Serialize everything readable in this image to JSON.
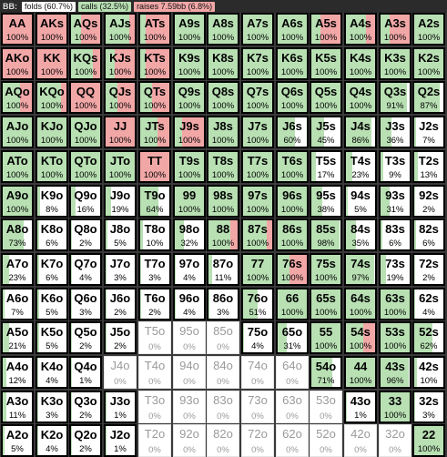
{
  "header": {
    "title": "BB:",
    "legend": [
      {
        "label": "folds (60.7%)",
        "color": "#ffffff"
      },
      {
        "label": "calls (32.5%)",
        "color": "#b8e0b3"
      },
      {
        "label": "raises 7.59bb (6.8%)",
        "color": "#f2a7a7"
      }
    ]
  },
  "colors": {
    "call": "#b8e0b3",
    "raise": "#f2a7a7",
    "fold": "#ffffff"
  },
  "rows": [
    [
      {
        "hand": "AA",
        "pct": "100%",
        "call": 0,
        "raise": 100
      },
      {
        "hand": "AKs",
        "pct": "100%",
        "call": 0,
        "raise": 100
      },
      {
        "hand": "AQs",
        "pct": "100%",
        "call": 35,
        "raise": 65
      },
      {
        "hand": "AJs",
        "pct": "100%",
        "call": 80,
        "raise": 20
      },
      {
        "hand": "ATs",
        "pct": "100%",
        "call": 20,
        "raise": 80
      },
      {
        "hand": "A9s",
        "pct": "100%",
        "call": 100,
        "raise": 0
      },
      {
        "hand": "A8s",
        "pct": "100%",
        "call": 100,
        "raise": 0
      },
      {
        "hand": "A7s",
        "pct": "100%",
        "call": 100,
        "raise": 0
      },
      {
        "hand": "A6s",
        "pct": "100%",
        "call": 100,
        "raise": 0
      },
      {
        "hand": "A5s",
        "pct": "100%",
        "call": 30,
        "raise": 70
      },
      {
        "hand": "A4s",
        "pct": "100%",
        "call": 70,
        "raise": 30
      },
      {
        "hand": "A3s",
        "pct": "100%",
        "call": 30,
        "raise": 70
      },
      {
        "hand": "A2s",
        "pct": "100%",
        "call": 100,
        "raise": 0
      }
    ],
    [
      {
        "hand": "AKo",
        "pct": "100%",
        "call": 0,
        "raise": 100
      },
      {
        "hand": "KK",
        "pct": "100%",
        "call": 0,
        "raise": 100
      },
      {
        "hand": "KQs",
        "pct": "100%",
        "call": 75,
        "raise": 25
      },
      {
        "hand": "KJs",
        "pct": "100%",
        "call": 30,
        "raise": 70
      },
      {
        "hand": "KTs",
        "pct": "100%",
        "call": 20,
        "raise": 80
      },
      {
        "hand": "K9s",
        "pct": "100%",
        "call": 100,
        "raise": 0
      },
      {
        "hand": "K8s",
        "pct": "100%",
        "call": 100,
        "raise": 0
      },
      {
        "hand": "K7s",
        "pct": "100%",
        "call": 100,
        "raise": 0
      },
      {
        "hand": "K6s",
        "pct": "100%",
        "call": 100,
        "raise": 0
      },
      {
        "hand": "K5s",
        "pct": "100%",
        "call": 100,
        "raise": 0
      },
      {
        "hand": "K4s",
        "pct": "100%",
        "call": 100,
        "raise": 0
      },
      {
        "hand": "K3s",
        "pct": "100%",
        "call": 100,
        "raise": 0
      },
      {
        "hand": "K2s",
        "pct": "100%",
        "call": 100,
        "raise": 0
      }
    ],
    [
      {
        "hand": "AQo",
        "pct": "100%",
        "call": 60,
        "raise": 40
      },
      {
        "hand": "KQo",
        "pct": "100%",
        "call": 80,
        "raise": 20
      },
      {
        "hand": "QQ",
        "pct": "100%",
        "call": 0,
        "raise": 100
      },
      {
        "hand": "QJs",
        "pct": "100%",
        "call": 40,
        "raise": 60
      },
      {
        "hand": "QTs",
        "pct": "100%",
        "call": 40,
        "raise": 60
      },
      {
        "hand": "Q9s",
        "pct": "100%",
        "call": 100,
        "raise": 0
      },
      {
        "hand": "Q8s",
        "pct": "100%",
        "call": 100,
        "raise": 0
      },
      {
        "hand": "Q7s",
        "pct": "100%",
        "call": 100,
        "raise": 0
      },
      {
        "hand": "Q6s",
        "pct": "100%",
        "call": 100,
        "raise": 0
      },
      {
        "hand": "Q5s",
        "pct": "100%",
        "call": 100,
        "raise": 0
      },
      {
        "hand": "Q4s",
        "pct": "100%",
        "call": 100,
        "raise": 0
      },
      {
        "hand": "Q3s",
        "pct": "91%",
        "call": 91,
        "raise": 0
      },
      {
        "hand": "Q2s",
        "pct": "87%",
        "call": 87,
        "raise": 0
      }
    ],
    [
      {
        "hand": "AJo",
        "pct": "100%",
        "call": 100,
        "raise": 0
      },
      {
        "hand": "KJo",
        "pct": "100%",
        "call": 100,
        "raise": 0
      },
      {
        "hand": "QJo",
        "pct": "100%",
        "call": 100,
        "raise": 0
      },
      {
        "hand": "JJ",
        "pct": "100%",
        "call": 0,
        "raise": 100
      },
      {
        "hand": "JTs",
        "pct": "100%",
        "call": 60,
        "raise": 40
      },
      {
        "hand": "J9s",
        "pct": "100%",
        "call": 25,
        "raise": 75
      },
      {
        "hand": "J8s",
        "pct": "100%",
        "call": 100,
        "raise": 0
      },
      {
        "hand": "J7s",
        "pct": "100%",
        "call": 100,
        "raise": 0
      },
      {
        "hand": "J6s",
        "pct": "60%",
        "call": 60,
        "raise": 0
      },
      {
        "hand": "J5s",
        "pct": "45%",
        "call": 45,
        "raise": 0
      },
      {
        "hand": "J4s",
        "pct": "86%",
        "call": 86,
        "raise": 0
      },
      {
        "hand": "J3s",
        "pct": "36%",
        "call": 36,
        "raise": 0
      },
      {
        "hand": "J2s",
        "pct": "7%",
        "call": 7,
        "raise": 0
      }
    ],
    [
      {
        "hand": "ATo",
        "pct": "100%",
        "call": 100,
        "raise": 0
      },
      {
        "hand": "KTo",
        "pct": "100%",
        "call": 100,
        "raise": 0
      },
      {
        "hand": "QTo",
        "pct": "100%",
        "call": 100,
        "raise": 0
      },
      {
        "hand": "JTo",
        "pct": "100%",
        "call": 100,
        "raise": 0
      },
      {
        "hand": "TT",
        "pct": "100%",
        "call": 0,
        "raise": 100
      },
      {
        "hand": "T9s",
        "pct": "100%",
        "call": 100,
        "raise": 0
      },
      {
        "hand": "T8s",
        "pct": "100%",
        "call": 100,
        "raise": 0
      },
      {
        "hand": "T7s",
        "pct": "100%",
        "call": 100,
        "raise": 0
      },
      {
        "hand": "T6s",
        "pct": "100%",
        "call": 100,
        "raise": 0
      },
      {
        "hand": "T5s",
        "pct": "17%",
        "call": 17,
        "raise": 0
      },
      {
        "hand": "T4s",
        "pct": "23%",
        "call": 23,
        "raise": 0
      },
      {
        "hand": "T3s",
        "pct": "9%",
        "call": 9,
        "raise": 0
      },
      {
        "hand": "T2s",
        "pct": "13%",
        "call": 13,
        "raise": 0
      }
    ],
    [
      {
        "hand": "A9o",
        "pct": "100%",
        "call": 100,
        "raise": 0
      },
      {
        "hand": "K9o",
        "pct": "8%",
        "call": 8,
        "raise": 0
      },
      {
        "hand": "Q9o",
        "pct": "16%",
        "call": 16,
        "raise": 0
      },
      {
        "hand": "J9o",
        "pct": "19%",
        "call": 19,
        "raise": 0
      },
      {
        "hand": "T9o",
        "pct": "64%",
        "call": 64,
        "raise": 0
      },
      {
        "hand": "99",
        "pct": "100%",
        "call": 100,
        "raise": 0
      },
      {
        "hand": "98s",
        "pct": "100%",
        "call": 100,
        "raise": 0
      },
      {
        "hand": "97s",
        "pct": "100%",
        "call": 100,
        "raise": 0
      },
      {
        "hand": "96s",
        "pct": "100%",
        "call": 100,
        "raise": 0
      },
      {
        "hand": "95s",
        "pct": "38%",
        "call": 38,
        "raise": 0
      },
      {
        "hand": "94s",
        "pct": "5%",
        "call": 5,
        "raise": 0
      },
      {
        "hand": "93s",
        "pct": "31%",
        "call": 31,
        "raise": 0
      },
      {
        "hand": "92s",
        "pct": "2%",
        "call": 2,
        "raise": 0
      }
    ],
    [
      {
        "hand": "A8o",
        "pct": "73%",
        "call": 73,
        "raise": 0
      },
      {
        "hand": "K8o",
        "pct": "6%",
        "call": 6,
        "raise": 0
      },
      {
        "hand": "Q8o",
        "pct": "2%",
        "call": 2,
        "raise": 0
      },
      {
        "hand": "J8o",
        "pct": "5%",
        "call": 5,
        "raise": 0
      },
      {
        "hand": "T8o",
        "pct": "10%",
        "call": 10,
        "raise": 0
      },
      {
        "hand": "98o",
        "pct": "32%",
        "call": 32,
        "raise": 0
      },
      {
        "hand": "88",
        "pct": "100%",
        "call": 75,
        "raise": 25
      },
      {
        "hand": "87s",
        "pct": "100%",
        "call": 80,
        "raise": 20
      },
      {
        "hand": "86s",
        "pct": "100%",
        "call": 100,
        "raise": 0
      },
      {
        "hand": "85s",
        "pct": "98%",
        "call": 98,
        "raise": 0
      },
      {
        "hand": "84s",
        "pct": "35%",
        "call": 35,
        "raise": 0
      },
      {
        "hand": "83s",
        "pct": "6%",
        "call": 6,
        "raise": 0
      },
      {
        "hand": "82s",
        "pct": "6%",
        "call": 6,
        "raise": 0
      }
    ],
    [
      {
        "hand": "A7o",
        "pct": "23%",
        "call": 23,
        "raise": 0
      },
      {
        "hand": "K7o",
        "pct": "6%",
        "call": 6,
        "raise": 0
      },
      {
        "hand": "Q7o",
        "pct": "4%",
        "call": 4,
        "raise": 0
      },
      {
        "hand": "J7o",
        "pct": "3%",
        "call": 3,
        "raise": 0
      },
      {
        "hand": "T7o",
        "pct": "3%",
        "call": 3,
        "raise": 0
      },
      {
        "hand": "97o",
        "pct": "4%",
        "call": 4,
        "raise": 0
      },
      {
        "hand": "87o",
        "pct": "11%",
        "call": 11,
        "raise": 0
      },
      {
        "hand": "77",
        "pct": "100%",
        "call": 100,
        "raise": 0
      },
      {
        "hand": "76s",
        "pct": "100%",
        "call": 40,
        "raise": 60
      },
      {
        "hand": "75s",
        "pct": "100%",
        "call": 100,
        "raise": 0
      },
      {
        "hand": "74s",
        "pct": "97%",
        "call": 97,
        "raise": 0
      },
      {
        "hand": "73s",
        "pct": "19%",
        "call": 19,
        "raise": 0
      },
      {
        "hand": "72s",
        "pct": "2%",
        "call": 2,
        "raise": 0
      }
    ],
    [
      {
        "hand": "A6o",
        "pct": "7%",
        "call": 7,
        "raise": 0
      },
      {
        "hand": "K6o",
        "pct": "5%",
        "call": 5,
        "raise": 0
      },
      {
        "hand": "Q6o",
        "pct": "3%",
        "call": 3,
        "raise": 0
      },
      {
        "hand": "J6o",
        "pct": "2%",
        "call": 2,
        "raise": 0
      },
      {
        "hand": "T6o",
        "pct": "2%",
        "call": 2,
        "raise": 0
      },
      {
        "hand": "96o",
        "pct": "4%",
        "call": 4,
        "raise": 0
      },
      {
        "hand": "86o",
        "pct": "3%",
        "call": 3,
        "raise": 0
      },
      {
        "hand": "76o",
        "pct": "51%",
        "call": 51,
        "raise": 0
      },
      {
        "hand": "66",
        "pct": "100%",
        "call": 100,
        "raise": 0
      },
      {
        "hand": "65s",
        "pct": "100%",
        "call": 100,
        "raise": 0
      },
      {
        "hand": "64s",
        "pct": "100%",
        "call": 100,
        "raise": 0
      },
      {
        "hand": "63s",
        "pct": "100%",
        "call": 100,
        "raise": 0
      },
      {
        "hand": "62s",
        "pct": "4%",
        "call": 4,
        "raise": 0
      }
    ],
    [
      {
        "hand": "A5o",
        "pct": "21%",
        "call": 21,
        "raise": 0
      },
      {
        "hand": "K5o",
        "pct": "5%",
        "call": 5,
        "raise": 0
      },
      {
        "hand": "Q5o",
        "pct": "2%",
        "call": 2,
        "raise": 0
      },
      {
        "hand": "J5o",
        "pct": "2%",
        "call": 2,
        "raise": 0
      },
      {
        "hand": "T5o",
        "pct": "0%",
        "call": 0,
        "raise": 0,
        "plain": true
      },
      {
        "hand": "95o",
        "pct": "0%",
        "call": 0,
        "raise": 0,
        "plain": true
      },
      {
        "hand": "85o",
        "pct": "0%",
        "call": 0,
        "raise": 0,
        "plain": true
      },
      {
        "hand": "75o",
        "pct": "4%",
        "call": 4,
        "raise": 0
      },
      {
        "hand": "65o",
        "pct": "31%",
        "call": 31,
        "raise": 0
      },
      {
        "hand": "55",
        "pct": "100%",
        "call": 100,
        "raise": 0
      },
      {
        "hand": "54s",
        "pct": "100%",
        "call": 60,
        "raise": 40
      },
      {
        "hand": "53s",
        "pct": "100%",
        "call": 100,
        "raise": 0
      },
      {
        "hand": "52s",
        "pct": "62%",
        "call": 62,
        "raise": 0
      }
    ],
    [
      {
        "hand": "A4o",
        "pct": "12%",
        "call": 12,
        "raise": 0
      },
      {
        "hand": "K4o",
        "pct": "4%",
        "call": 4,
        "raise": 0
      },
      {
        "hand": "Q4o",
        "pct": "1%",
        "call": 1,
        "raise": 0
      },
      {
        "hand": "J4o",
        "pct": "0%",
        "call": 0,
        "raise": 0,
        "plain": true
      },
      {
        "hand": "T4o",
        "pct": "0%",
        "call": 0,
        "raise": 0,
        "plain": true
      },
      {
        "hand": "94o",
        "pct": "0%",
        "call": 0,
        "raise": 0,
        "plain": true
      },
      {
        "hand": "84o",
        "pct": "0%",
        "call": 0,
        "raise": 0,
        "plain": true
      },
      {
        "hand": "74o",
        "pct": "0%",
        "call": 0,
        "raise": 0,
        "plain": true
      },
      {
        "hand": "64o",
        "pct": "0%",
        "call": 0,
        "raise": 0,
        "plain": true
      },
      {
        "hand": "54o",
        "pct": "71%",
        "call": 71,
        "raise": 0
      },
      {
        "hand": "44",
        "pct": "100%",
        "call": 100,
        "raise": 0
      },
      {
        "hand": "43s",
        "pct": "96%",
        "call": 96,
        "raise": 0
      },
      {
        "hand": "42s",
        "pct": "10%",
        "call": 10,
        "raise": 0
      }
    ],
    [
      {
        "hand": "A3o",
        "pct": "11%",
        "call": 11,
        "raise": 0
      },
      {
        "hand": "K3o",
        "pct": "3%",
        "call": 3,
        "raise": 0
      },
      {
        "hand": "Q3o",
        "pct": "2%",
        "call": 2,
        "raise": 0
      },
      {
        "hand": "J3o",
        "pct": "1%",
        "call": 1,
        "raise": 0
      },
      {
        "hand": "T3o",
        "pct": "0%",
        "call": 0,
        "raise": 0,
        "plain": true
      },
      {
        "hand": "93o",
        "pct": "0%",
        "call": 0,
        "raise": 0,
        "plain": true
      },
      {
        "hand": "83o",
        "pct": "0%",
        "call": 0,
        "raise": 0,
        "plain": true
      },
      {
        "hand": "73o",
        "pct": "0%",
        "call": 0,
        "raise": 0,
        "plain": true
      },
      {
        "hand": "63o",
        "pct": "0%",
        "call": 0,
        "raise": 0,
        "plain": true
      },
      {
        "hand": "53o",
        "pct": "0%",
        "call": 0,
        "raise": 0,
        "plain": true
      },
      {
        "hand": "43o",
        "pct": "1%",
        "call": 1,
        "raise": 0
      },
      {
        "hand": "33",
        "pct": "100%",
        "call": 100,
        "raise": 0
      },
      {
        "hand": "32s",
        "pct": "3%",
        "call": 3,
        "raise": 0
      }
    ],
    [
      {
        "hand": "A2o",
        "pct": "5%",
        "call": 5,
        "raise": 0
      },
      {
        "hand": "K2o",
        "pct": "4%",
        "call": 4,
        "raise": 0
      },
      {
        "hand": "Q2o",
        "pct": "2%",
        "call": 2,
        "raise": 0
      },
      {
        "hand": "J2o",
        "pct": "1%",
        "call": 1,
        "raise": 0
      },
      {
        "hand": "T2o",
        "pct": "0%",
        "call": 0,
        "raise": 0,
        "plain": true
      },
      {
        "hand": "92o",
        "pct": "0%",
        "call": 0,
        "raise": 0,
        "plain": true
      },
      {
        "hand": "82o",
        "pct": "0%",
        "call": 0,
        "raise": 0,
        "plain": true
      },
      {
        "hand": "72o",
        "pct": "0%",
        "call": 0,
        "raise": 0,
        "plain": true
      },
      {
        "hand": "62o",
        "pct": "0%",
        "call": 0,
        "raise": 0,
        "plain": true
      },
      {
        "hand": "52o",
        "pct": "0%",
        "call": 0,
        "raise": 0,
        "plain": true
      },
      {
        "hand": "42o",
        "pct": "0%",
        "call": 0,
        "raise": 0,
        "plain": true
      },
      {
        "hand": "32o",
        "pct": "0%",
        "call": 0,
        "raise": 0,
        "plain": true
      },
      {
        "hand": "22",
        "pct": "100%",
        "call": 100,
        "raise": 0
      }
    ]
  ]
}
